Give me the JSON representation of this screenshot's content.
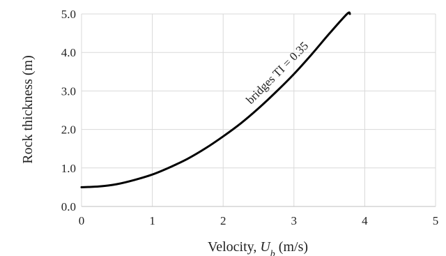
{
  "chart_data": {
    "type": "line",
    "xlabel_prefix": "Velocity, ",
    "xlabel_var": "U",
    "xlabel_sub": "b",
    "xlabel_suffix": " (m/s)",
    "ylabel": "Rock thickness (m)",
    "xlim": [
      0,
      5
    ],
    "ylim": [
      0,
      5
    ],
    "x_ticks": [
      "0",
      "1",
      "2",
      "3",
      "4",
      "5"
    ],
    "y_ticks": [
      "0.0",
      "1.0",
      "2.0",
      "3.0",
      "4.0",
      "5.0"
    ],
    "grid": true,
    "colors": {
      "line": "#000000",
      "grid": "#d9d9d9",
      "axis": "#bfbfbf"
    },
    "series": [
      {
        "label": "bridges TI = 0.35",
        "x": [
          0,
          0.25,
          0.5,
          0.75,
          1.0,
          1.25,
          1.5,
          1.75,
          2.0,
          2.25,
          2.5,
          2.75,
          3.0,
          3.25,
          3.5,
          3.75,
          3.79
        ],
        "y": [
          0.5,
          0.52,
          0.58,
          0.69,
          0.83,
          1.02,
          1.24,
          1.51,
          1.82,
          2.16,
          2.55,
          2.98,
          3.44,
          3.95,
          4.49,
          5.0,
          5.0
        ]
      }
    ]
  }
}
